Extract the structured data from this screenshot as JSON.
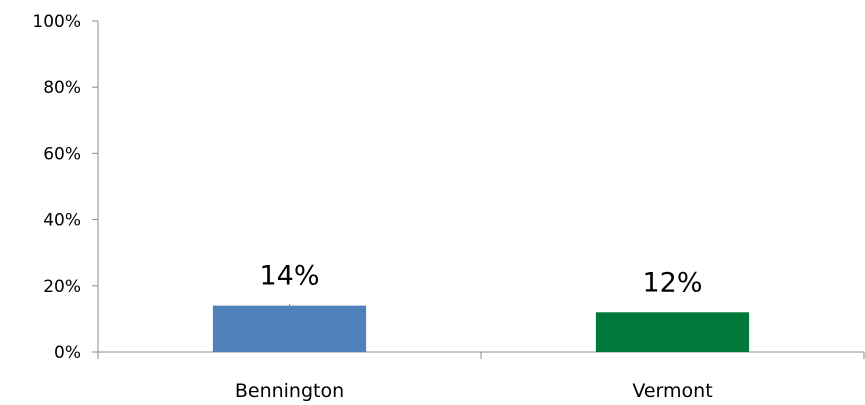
{
  "chart_data": {
    "type": "bar",
    "categories": [
      "Bennington",
      "Vermont"
    ],
    "values": [
      0.14,
      0.12
    ],
    "data_labels": [
      "14%",
      "12%"
    ],
    "error_bars": [
      0.01,
      0.0
    ],
    "ylim": [
      0,
      1
    ],
    "yticks": [
      0,
      0.2,
      0.4,
      0.6,
      0.8,
      1.0
    ],
    "ytick_labels": [
      "0%",
      "20%",
      "40%",
      "60%",
      "80%",
      "100%"
    ],
    "colors": [
      "#4f81bd",
      "#00793a"
    ],
    "grid": false,
    "legend": "none",
    "title": "",
    "xlabel": "",
    "ylabel": ""
  }
}
